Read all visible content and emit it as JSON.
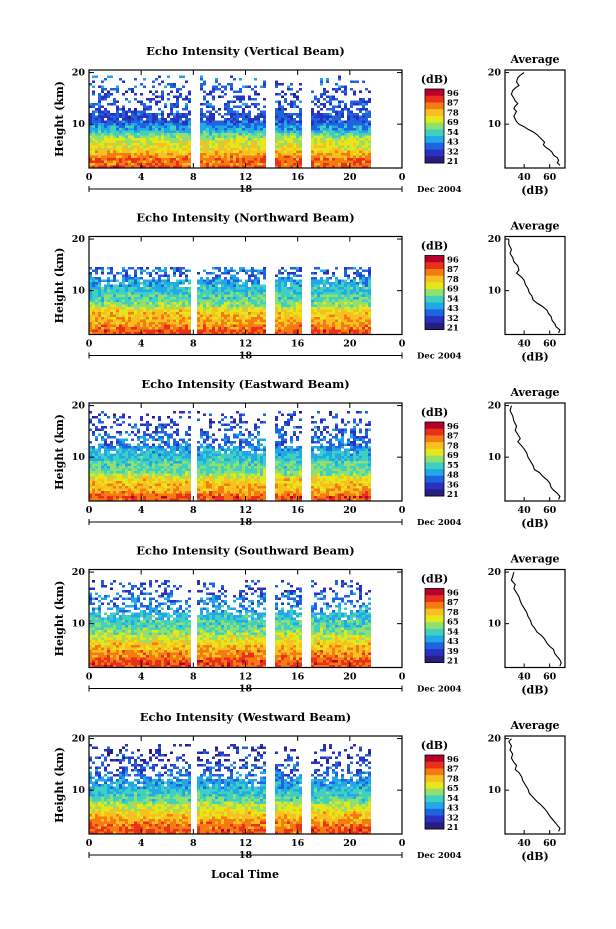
{
  "figure": {
    "local_time_label": "Local Time",
    "date_suffix": "Dec 2004",
    "date_marker": "18",
    "height_label": "Height (km)",
    "average_title": "Average",
    "db_label": "(dB)",
    "colorbar_unit": "(dB)"
  },
  "chart_data": [
    {
      "type": "heatmap",
      "title": "Echo Intensity (Vertical Beam)",
      "ylabel": "Height (km)",
      "x_ticks": [
        "0",
        "4",
        "8",
        "12",
        "16",
        "20",
        "0"
      ],
      "y_ticks": [
        "20",
        "10"
      ],
      "xlim": [
        0,
        24
      ],
      "ylim": [
        1.5,
        20.5
      ],
      "data_end": 21.5,
      "gaps": [
        [
          7.9,
          8.3
        ],
        [
          13.6,
          14.2
        ],
        [
          16.5,
          16.8
        ]
      ],
      "colorbar": {
        "ticks": [
          "96",
          "87",
          "78",
          "69",
          "54",
          "43",
          "32",
          "21"
        ],
        "colors": [
          "#b8002a",
          "#e8301a",
          "#f57a12",
          "#f7c020",
          "#e4e81a",
          "#90e070",
          "#40d0c0",
          "#20a8e8",
          "#1e64e0",
          "#2a30c0",
          "#281e80"
        ]
      },
      "echo_top_km": 19.5,
      "profile": {
        "title": "Average",
        "xlabel": "(dB)",
        "x_ticks": [
          40,
          60
        ],
        "xlim": [
          25,
          72
        ],
        "ylim": [
          1.5,
          20.5
        ],
        "y_ticks": [
          20,
          10
        ],
        "points": [
          [
            40,
            20
          ],
          [
            37,
            19.5
          ],
          [
            35,
            19
          ],
          [
            34,
            18.2
          ],
          [
            36,
            17.5
          ],
          [
            33,
            17
          ],
          [
            31,
            16.5
          ],
          [
            30,
            15.8
          ],
          [
            32,
            15
          ],
          [
            33,
            14.5
          ],
          [
            35,
            14
          ],
          [
            33,
            13.5
          ],
          [
            32,
            13
          ],
          [
            34,
            12.5
          ],
          [
            33,
            12
          ],
          [
            32,
            11.5
          ],
          [
            33,
            11
          ],
          [
            34,
            10.5
          ],
          [
            36,
            10
          ],
          [
            40,
            9.5
          ],
          [
            43,
            9
          ],
          [
            47,
            8.5
          ],
          [
            50,
            8
          ],
          [
            52,
            7.5
          ],
          [
            54,
            7
          ],
          [
            56,
            6.5
          ],
          [
            55,
            6
          ],
          [
            57,
            5.5
          ],
          [
            60,
            5
          ],
          [
            62,
            4.5
          ],
          [
            63,
            4
          ],
          [
            66,
            3.5
          ],
          [
            67,
            3
          ],
          [
            66,
            2.5
          ],
          [
            68,
            2
          ]
        ]
      }
    },
    {
      "type": "heatmap",
      "title": "Echo Intensity (Northward Beam)",
      "ylabel": "Height (km)",
      "x_ticks": [
        "0",
        "4",
        "8",
        "12",
        "16",
        "20",
        "0"
      ],
      "y_ticks": [
        "20",
        "10"
      ],
      "xlim": [
        0,
        24
      ],
      "ylim": [
        1.5,
        20.5
      ],
      "data_end": 21.5,
      "gaps": [
        [
          7.9,
          8.2
        ],
        [
          13.6,
          14.2
        ],
        [
          16.5,
          16.8
        ]
      ],
      "colorbar": {
        "ticks": [
          "96",
          "87",
          "78",
          "69",
          "54",
          "43",
          "32",
          "21"
        ],
        "colors": [
          "#b8002a",
          "#e8301a",
          "#f57a12",
          "#f7c020",
          "#e4e81a",
          "#90e070",
          "#40d0c0",
          "#20a8e8",
          "#1e64e0",
          "#2a30c0",
          "#281e80"
        ]
      },
      "echo_top_km": 15.0,
      "profile": {
        "title": "Average",
        "xlabel": "(dB)",
        "x_ticks": [
          40,
          60
        ],
        "xlim": [
          25,
          72
        ],
        "ylim": [
          1.5,
          20.5
        ],
        "y_ticks": [
          20,
          10
        ],
        "points": [
          [
            28,
            20
          ],
          [
            28,
            19
          ],
          [
            30,
            18
          ],
          [
            29,
            17.2
          ],
          [
            31,
            16.4
          ],
          [
            32,
            15.6
          ],
          [
            35,
            14.8
          ],
          [
            36,
            14
          ],
          [
            34,
            13.4
          ],
          [
            38,
            12.6
          ],
          [
            40,
            12
          ],
          [
            41,
            11.2
          ],
          [
            43,
            10.4
          ],
          [
            44,
            9.6
          ],
          [
            46,
            9
          ],
          [
            47,
            8.2
          ],
          [
            50,
            7.6
          ],
          [
            54,
            7
          ],
          [
            58,
            6.2
          ],
          [
            59,
            5.6
          ],
          [
            61,
            5
          ],
          [
            62,
            4.2
          ],
          [
            64,
            3.6
          ],
          [
            65,
            3
          ],
          [
            68,
            2.4
          ],
          [
            67,
            1.8
          ]
        ]
      }
    },
    {
      "type": "heatmap",
      "title": "Echo Intensity (Eastward Beam)",
      "ylabel": "Height (km)",
      "x_ticks": [
        "0",
        "4",
        "8",
        "12",
        "16",
        "20",
        "0"
      ],
      "y_ticks": [
        "20",
        "10"
      ],
      "xlim": [
        0,
        24
      ],
      "ylim": [
        1.5,
        20.5
      ],
      "data_end": 21.5,
      "gaps": [
        [
          7.9,
          8.2
        ],
        [
          13.7,
          14.2
        ],
        [
          16.5,
          16.8
        ]
      ],
      "colorbar": {
        "ticks": [
          "96",
          "87",
          "78",
          "69",
          "55",
          "48",
          "36",
          "21"
        ],
        "colors": [
          "#b8002a",
          "#e8301a",
          "#f57a12",
          "#f7c020",
          "#e4e81a",
          "#90e070",
          "#40d0c0",
          "#20a8e8",
          "#1e64e0",
          "#2a30c0",
          "#281e80"
        ]
      },
      "echo_top_km": 19.0,
      "profile": {
        "title": "Average",
        "xlabel": "(dB)",
        "x_ticks": [
          40,
          60
        ],
        "xlim": [
          25,
          72
        ],
        "ylim": [
          1.5,
          20.5
        ],
        "y_ticks": [
          20,
          10
        ],
        "points": [
          [
            30,
            20
          ],
          [
            29,
            19
          ],
          [
            31,
            18
          ],
          [
            32,
            17
          ],
          [
            34,
            16
          ],
          [
            33,
            15.2
          ],
          [
            35,
            14.4
          ],
          [
            37,
            13.6
          ],
          [
            35,
            13
          ],
          [
            38,
            12.2
          ],
          [
            40,
            11.6
          ],
          [
            42,
            10.8
          ],
          [
            43,
            10
          ],
          [
            45,
            9.2
          ],
          [
            47,
            8.4
          ],
          [
            48,
            7.6
          ],
          [
            52,
            7
          ],
          [
            55,
            6.2
          ],
          [
            58,
            5.6
          ],
          [
            60,
            5
          ],
          [
            61,
            4.2
          ],
          [
            63,
            3.6
          ],
          [
            66,
            3
          ],
          [
            68,
            2.4
          ],
          [
            67,
            1.8
          ]
        ]
      }
    },
    {
      "type": "heatmap",
      "title": "Echo Intensity (Southward Beam)",
      "ylabel": "Height (km)",
      "x_ticks": [
        "0",
        "4",
        "8",
        "12",
        "16",
        "20",
        "0"
      ],
      "y_ticks": [
        "20",
        "10"
      ],
      "xlim": [
        0,
        24
      ],
      "ylim": [
        1.5,
        20.5
      ],
      "data_end": 21.5,
      "gaps": [
        [
          7.9,
          8.2
        ],
        [
          13.6,
          14.2
        ],
        [
          16.5,
          16.8
        ]
      ],
      "colorbar": {
        "ticks": [
          "96",
          "87",
          "78",
          "65",
          "54",
          "43",
          "39",
          "21"
        ],
        "colors": [
          "#b8002a",
          "#e8301a",
          "#f57a12",
          "#f7c020",
          "#e4e81a",
          "#90e070",
          "#40d0c0",
          "#20a8e8",
          "#1e64e0",
          "#2a30c0",
          "#281e80"
        ]
      },
      "echo_top_km": 18.5,
      "profile": {
        "title": "Average",
        "xlabel": "(dB)",
        "x_ticks": [
          40,
          60
        ],
        "xlim": [
          25,
          72
        ],
        "ylim": [
          1.5,
          20.5
        ],
        "y_ticks": [
          20,
          10
        ],
        "points": [
          [
            32,
            20
          ],
          [
            31,
            19.2
          ],
          [
            30,
            18.4
          ],
          [
            33,
            17.6
          ],
          [
            32,
            16.8
          ],
          [
            34,
            16
          ],
          [
            36,
            15.2
          ],
          [
            37,
            14.4
          ],
          [
            38,
            13.8
          ],
          [
            40,
            13
          ],
          [
            42,
            12.2
          ],
          [
            43,
            11.4
          ],
          [
            45,
            10.6
          ],
          [
            46,
            9.8
          ],
          [
            48,
            9.2
          ],
          [
            50,
            8.4
          ],
          [
            54,
            7.6
          ],
          [
            56,
            7
          ],
          [
            58,
            6.2
          ],
          [
            60,
            5.6
          ],
          [
            63,
            5
          ],
          [
            64,
            4.2
          ],
          [
            66,
            3.6
          ],
          [
            68,
            3
          ],
          [
            69,
            2.4
          ],
          [
            68,
            1.8
          ]
        ]
      }
    },
    {
      "type": "heatmap",
      "title": "Echo Intensity (Westward Beam)",
      "ylabel": "Height (km)",
      "x_ticks": [
        "0",
        "4",
        "8",
        "12",
        "16",
        "20",
        "0"
      ],
      "y_ticks": [
        "20",
        "10"
      ],
      "xlim": [
        0,
        24
      ],
      "ylim": [
        1.5,
        20.5
      ],
      "data_end": 21.5,
      "gaps": [
        [
          7.9,
          8.2
        ],
        [
          13.6,
          14.2
        ],
        [
          16.5,
          16.8
        ]
      ],
      "colorbar": {
        "ticks": [
          "96",
          "87",
          "78",
          "65",
          "54",
          "43",
          "32",
          "21"
        ],
        "colors": [
          "#b8002a",
          "#e8301a",
          "#f57a12",
          "#f7c020",
          "#e4e81a",
          "#90e070",
          "#40d0c0",
          "#20a8e8",
          "#1e64e0",
          "#2a30c0",
          "#281e80"
        ]
      },
      "echo_top_km": 19.0,
      "profile": {
        "title": "Average",
        "xlabel": "(dB)",
        "x_ticks": [
          40,
          60
        ],
        "xlim": [
          25,
          72
        ],
        "ylim": [
          1.5,
          20.5
        ],
        "y_ticks": [
          20,
          10
        ],
        "points": [
          [
            30,
            20
          ],
          [
            28,
            19.4
          ],
          [
            30,
            18.6
          ],
          [
            29,
            17.8
          ],
          [
            31,
            17
          ],
          [
            30,
            16.2
          ],
          [
            32,
            15.4
          ],
          [
            34,
            14.8
          ],
          [
            33,
            14
          ],
          [
            36,
            13.4
          ],
          [
            38,
            12.6
          ],
          [
            39,
            11.8
          ],
          [
            41,
            11
          ],
          [
            43,
            10.2
          ],
          [
            44,
            9.4
          ],
          [
            47,
            8.6
          ],
          [
            50,
            7.8
          ],
          [
            53,
            7.2
          ],
          [
            56,
            6.4
          ],
          [
            58,
            5.8
          ],
          [
            60,
            5
          ],
          [
            62,
            4.4
          ],
          [
            64,
            3.8
          ],
          [
            66,
            3.2
          ],
          [
            68,
            2.6
          ],
          [
            67,
            2
          ]
        ]
      }
    }
  ]
}
